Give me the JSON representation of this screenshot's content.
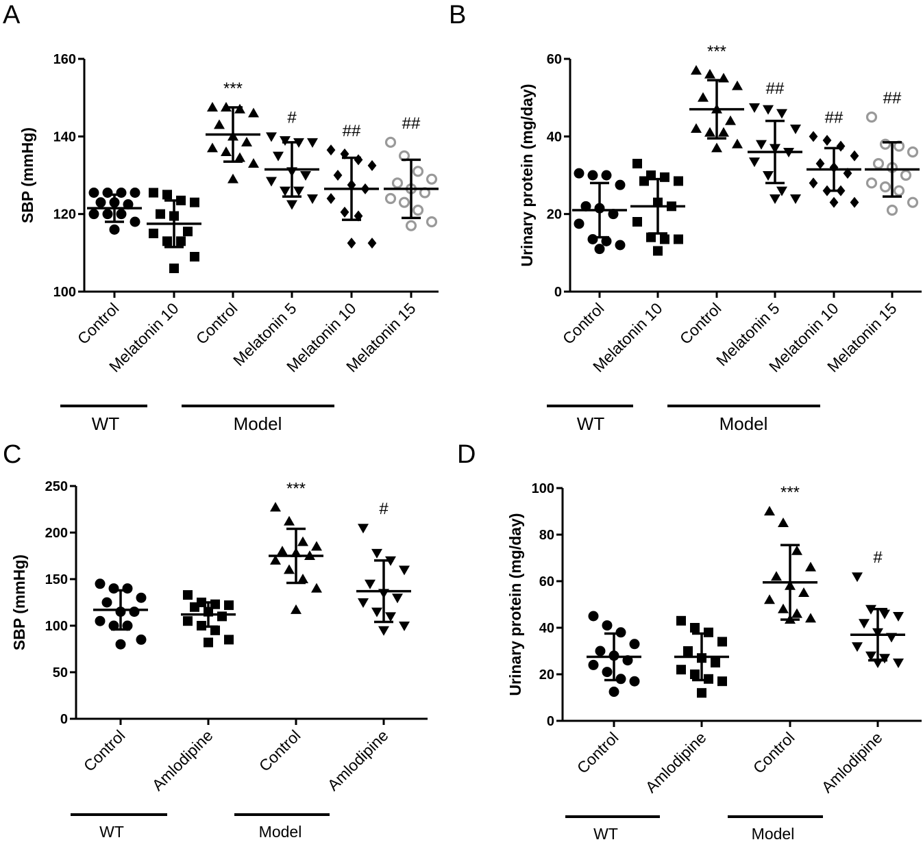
{
  "chart_data": [
    {
      "panel": "A",
      "type": "scatter",
      "ylabel": "SBP (mmHg)",
      "ylim": [
        100,
        160
      ],
      "yticks": [
        100,
        120,
        140,
        160
      ],
      "categories": [
        "Control",
        "Melatonin 10",
        "Control",
        "Melatonin 5",
        "Melatonin 10",
        "Melatonin 15"
      ],
      "groups": [
        {
          "name": "WT",
          "from": 0,
          "to": 1
        },
        {
          "name": "Model",
          "from": 2,
          "to": 4
        }
      ],
      "series": [
        {
          "name": "WT Control",
          "marker": "circle",
          "color": "#000000",
          "mean": 121.5,
          "sd": 3.5,
          "sig": "",
          "values": [
            125.5,
            125.5,
            125.5,
            125.5,
            123,
            123,
            122.5,
            120,
            120,
            120,
            118,
            116
          ]
        },
        {
          "name": "WT Melatonin 10",
          "marker": "square",
          "color": "#000000",
          "mean": 117.5,
          "sd": 6,
          "sig": "",
          "values": [
            125.5,
            125,
            123.5,
            123,
            120,
            119.5,
            115.5,
            115,
            113,
            113,
            109,
            106
          ]
        },
        {
          "name": "Model Control",
          "marker": "triangle-up",
          "color": "#000000",
          "mean": 140.5,
          "sd": 7,
          "sig": "***",
          "values": [
            147.5,
            147.5,
            147,
            146,
            143,
            140,
            138.5,
            137,
            136,
            134.5,
            133,
            129
          ]
        },
        {
          "name": "Model Melatonin 5",
          "marker": "triangle-down",
          "color": "#000000",
          "mean": 131.5,
          "sd": 7,
          "sig": "#",
          "values": [
            140,
            139,
            138.5,
            138.5,
            135,
            131,
            130,
            128.5,
            126,
            126,
            124,
            122.5
          ]
        },
        {
          "name": "Model Melatonin 10",
          "marker": "diamond",
          "color": "#000000",
          "mean": 126.5,
          "sd": 8,
          "sig": "##",
          "values": [
            136.5,
            135.5,
            134,
            132.5,
            130,
            127.5,
            126.5,
            124,
            120.5,
            119.5,
            112.5,
            112.5
          ]
        },
        {
          "name": "Model Melatonin 15",
          "marker": "circle-open",
          "color": "#999999",
          "mean": 126.5,
          "sd": 7.5,
          "sig": "##",
          "values": [
            138.5,
            135,
            131,
            129,
            128,
            126.5,
            125.5,
            124,
            123,
            121,
            118,
            117
          ]
        }
      ]
    },
    {
      "panel": "B",
      "type": "scatter",
      "ylabel": "Urinary protein (mg/day)",
      "ylim": [
        0,
        60
      ],
      "yticks": [
        0,
        20,
        40,
        60
      ],
      "categories": [
        "Control",
        "Melatonin 10",
        "Control",
        "Melatonin 5",
        "Melatonin 10",
        "Melatonin 15"
      ],
      "groups": [
        {
          "name": "WT",
          "from": 0,
          "to": 1
        },
        {
          "name": "Model",
          "from": 2,
          "to": 4
        }
      ],
      "series": [
        {
          "name": "WT Control",
          "marker": "circle",
          "color": "#000000",
          "mean": 21,
          "sd": 7,
          "sig": "",
          "values": [
            30.5,
            30,
            30,
            27.5,
            22,
            21.5,
            20,
            17.5,
            13.5,
            13,
            12,
            11
          ]
        },
        {
          "name": "WT Melatonin 10",
          "marker": "square",
          "color": "#000000",
          "mean": 22,
          "sd": 7,
          "sig": "",
          "values": [
            33,
            30,
            29.5,
            28.5,
            28.5,
            23,
            22,
            18,
            14,
            13.5,
            13.5,
            10.5
          ]
        },
        {
          "name": "Model Control",
          "marker": "triangle-up",
          "color": "#000000",
          "mean": 47,
          "sd": 7.5,
          "sig": "***",
          "values": [
            57,
            56,
            55,
            53,
            50,
            47,
            44,
            42,
            41,
            41,
            38,
            37
          ]
        },
        {
          "name": "Model Melatonin 5",
          "marker": "triangle-down",
          "color": "#000000",
          "mean": 36,
          "sd": 8,
          "sig": "##",
          "values": [
            47.5,
            47,
            46,
            42,
            38,
            37,
            36,
            33.5,
            30,
            26,
            24,
            24
          ]
        },
        {
          "name": "Model Melatonin 10",
          "marker": "diamond",
          "color": "#000000",
          "mean": 31.5,
          "sd": 5.5,
          "sig": "##",
          "values": [
            40,
            39,
            37.5,
            35,
            33,
            32,
            30.5,
            28,
            26,
            26,
            23,
            23
          ]
        },
        {
          "name": "Model Melatonin 15",
          "marker": "circle-open",
          "color": "#999999",
          "mean": 31.5,
          "sd": 7,
          "sig": "##",
          "values": [
            45,
            38,
            37.5,
            36,
            33,
            32,
            30,
            28,
            27,
            26,
            23,
            21
          ]
        }
      ]
    },
    {
      "panel": "C",
      "type": "scatter",
      "ylabel": "SBP (mmHg)",
      "ylim": [
        0,
        250
      ],
      "yticks": [
        0,
        50,
        100,
        150,
        200,
        250
      ],
      "categories": [
        "Control",
        "Amlodipine",
        "Control",
        "Amlodipine"
      ],
      "groups": [
        {
          "name": "WT",
          "from": 0,
          "to": 1
        },
        {
          "name": "Model",
          "from": 2,
          "to": 3
        }
      ],
      "series": [
        {
          "name": "WT Control",
          "marker": "circle",
          "color": "#000000",
          "mean": 117,
          "sd": 21,
          "sig": "",
          "values": [
            145,
            140,
            140,
            130,
            125,
            115,
            115,
            105,
            100,
            100,
            85,
            80
          ]
        },
        {
          "name": "WT Amlodipine",
          "marker": "square",
          "color": "#000000",
          "mean": 112,
          "sd": 13,
          "sig": "",
          "values": [
            133,
            125,
            123,
            122,
            120,
            115,
            110,
            105,
            100,
            95,
            85,
            82
          ]
        },
        {
          "name": "Model Control",
          "marker": "triangle-up",
          "color": "#000000",
          "mean": 175,
          "sd": 29,
          "sig": "***",
          "values": [
            227,
            212,
            190,
            185,
            180,
            178,
            175,
            170,
            160,
            150,
            140,
            117
          ]
        },
        {
          "name": "Model Amlodipine",
          "marker": "triangle-down",
          "color": "#000000",
          "mean": 137,
          "sd": 33,
          "sig": "#",
          "values": [
            205,
            178,
            170,
            160,
            145,
            135,
            130,
            125,
            115,
            110,
            100,
            95
          ]
        }
      ]
    },
    {
      "panel": "D",
      "type": "scatter",
      "ylabel": "Urinary protein (mg/day)",
      "ylim": [
        0,
        100
      ],
      "yticks": [
        0,
        20,
        40,
        60,
        80,
        100
      ],
      "categories": [
        "Control",
        "Amlodipine",
        "Control",
        "Amlodipine"
      ],
      "groups": [
        {
          "name": "WT",
          "from": 0,
          "to": 1
        },
        {
          "name": "Model",
          "from": 2,
          "to": 3
        }
      ],
      "series": [
        {
          "name": "WT Control",
          "marker": "circle",
          "color": "#000000",
          "mean": 27.5,
          "sd": 10,
          "sig": "",
          "values": [
            45,
            41,
            38,
            33,
            30,
            28,
            26,
            24,
            21,
            18,
            17,
            12.5
          ]
        },
        {
          "name": "WT Amlodipine",
          "marker": "square",
          "color": "#000000",
          "mean": 27.5,
          "sd": 10,
          "sig": "",
          "values": [
            43,
            40,
            38,
            34,
            30,
            27,
            25,
            22,
            20,
            18,
            17,
            12
          ]
        },
        {
          "name": "Model Control",
          "marker": "triangle-up",
          "color": "#000000",
          "mean": 59.5,
          "sd": 16,
          "sig": "***",
          "values": [
            90,
            85,
            73,
            66,
            62,
            58,
            55,
            52,
            48,
            46,
            44,
            43.5
          ]
        },
        {
          "name": "Model Amlodipine",
          "marker": "triangle-down",
          "color": "#000000",
          "mean": 37,
          "sd": 11,
          "sig": "#",
          "values": [
            62,
            48,
            46,
            45,
            42,
            38,
            36,
            32,
            28,
            27,
            25,
            25
          ]
        }
      ]
    }
  ]
}
